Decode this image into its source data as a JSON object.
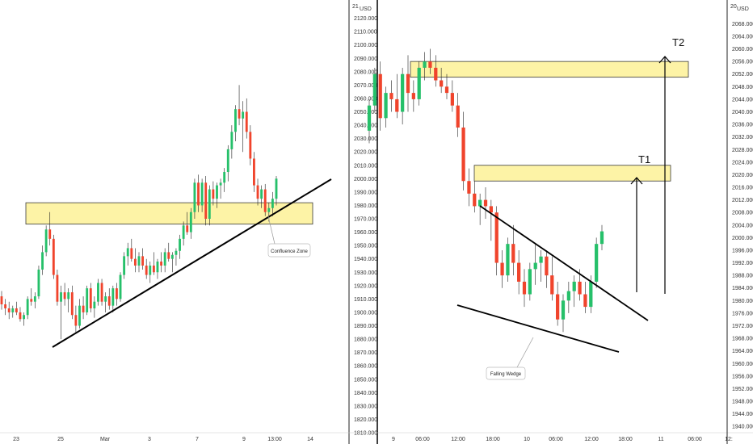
{
  "chart_data": [
    {
      "type": "candlestick",
      "panel": "left",
      "price_unit": "USD",
      "x_tick_labels": [
        "23",
        "25",
        "Mar",
        "3",
        "7",
        "9",
        "13:00",
        "14"
      ],
      "y_ticks": [
        "2120.000",
        "2110.000",
        "2100.000",
        "2090.000",
        "2080.000",
        "2070.000",
        "2060.000",
        "2050.000",
        "2040.000",
        "2030.000",
        "2020.000",
        "2010.000",
        "2000.000",
        "1990.000",
        "1980.000",
        "1970.000",
        "1960.000",
        "1950.000",
        "1940.000",
        "1930.000",
        "1920.000",
        "1910.000",
        "1900.000",
        "1890.000",
        "1880.000",
        "1870.000",
        "1860.000",
        "1850.000",
        "1840.000",
        "1830.000",
        "1820.000",
        "1810.000"
      ],
      "ylim": [
        1810,
        2130
      ],
      "price_top_label": "21",
      "candles_ohlc": [
        [
          1912,
          1916,
          1902,
          1906
        ],
        [
          1906,
          1910,
          1898,
          1903
        ],
        [
          1903,
          1908,
          1895,
          1900
        ],
        [
          1900,
          1905,
          1896,
          1903
        ],
        [
          1903,
          1908,
          1898,
          1900
        ],
        [
          1900,
          1904,
          1893,
          1895
        ],
        [
          1895,
          1900,
          1890,
          1898
        ],
        [
          1898,
          1912,
          1895,
          1910
        ],
        [
          1910,
          1918,
          1905,
          1908
        ],
        [
          1908,
          1915,
          1903,
          1912
        ],
        [
          1912,
          1935,
          1910,
          1932
        ],
        [
          1932,
          1950,
          1928,
          1945
        ],
        [
          1945,
          1965,
          1942,
          1962
        ],
        [
          1962,
          1975,
          1950,
          1955
        ],
        [
          1955,
          1958,
          1925,
          1928
        ],
        [
          1928,
          1932,
          1905,
          1908
        ],
        [
          1908,
          1920,
          1880,
          1915
        ],
        [
          1915,
          1922,
          1905,
          1910
        ],
        [
          1910,
          1918,
          1900,
          1915
        ],
        [
          1915,
          1920,
          1895,
          1898
        ],
        [
          1898,
          1905,
          1885,
          1890
        ],
        [
          1890,
          1910,
          1888,
          1905
        ],
        [
          1905,
          1912,
          1895,
          1900
        ],
        [
          1900,
          1920,
          1898,
          1918
        ],
        [
          1918,
          1922,
          1900,
          1903
        ],
        [
          1903,
          1912,
          1896,
          1908
        ],
        [
          1908,
          1925,
          1905,
          1922
        ],
        [
          1922,
          1925,
          1905,
          1908
        ],
        [
          1908,
          1915,
          1900,
          1912
        ],
        [
          1912,
          1918,
          1902,
          1905
        ],
        [
          1905,
          1920,
          1900,
          1918
        ],
        [
          1918,
          1922,
          1905,
          1910
        ],
        [
          1910,
          1930,
          1908,
          1928
        ],
        [
          1928,
          1945,
          1925,
          1942
        ],
        [
          1942,
          1952,
          1935,
          1948
        ],
        [
          1948,
          1955,
          1938,
          1940
        ],
        [
          1940,
          1948,
          1930,
          1935
        ],
        [
          1935,
          1945,
          1930,
          1942
        ],
        [
          1942,
          1948,
          1932,
          1935
        ],
        [
          1935,
          1940,
          1925,
          1928
        ],
        [
          1928,
          1938,
          1922,
          1935
        ],
        [
          1935,
          1945,
          1928,
          1930
        ],
        [
          1930,
          1940,
          1925,
          1938
        ],
        [
          1938,
          1945,
          1930,
          1935
        ],
        [
          1935,
          1948,
          1930,
          1945
        ],
        [
          1945,
          1952,
          1938,
          1940
        ],
        [
          1940,
          1945,
          1930,
          1943
        ],
        [
          1943,
          1948,
          1935,
          1946
        ],
        [
          1946,
          1958,
          1940,
          1955
        ],
        [
          1955,
          1968,
          1950,
          1965
        ],
        [
          1965,
          1975,
          1958,
          1960
        ],
        [
          1960,
          1978,
          1955,
          1975
        ],
        [
          1975,
          2000,
          1970,
          1997
        ],
        [
          1997,
          2003,
          1975,
          1980
        ],
        [
          1980,
          2000,
          1975,
          1997
        ],
        [
          1997,
          2002,
          1965,
          1970
        ],
        [
          1970,
          1995,
          1965,
          1992
        ],
        [
          1992,
          1998,
          1980,
          1985
        ],
        [
          1985,
          1997,
          1978,
          1995
        ],
        [
          1995,
          2000,
          1985,
          1997
        ],
        [
          1997,
          2008,
          1990,
          2005
        ],
        [
          2005,
          2025,
          1998,
          2022
        ],
        [
          2022,
          2040,
          2015,
          2035
        ],
        [
          2035,
          2055,
          2028,
          2052
        ],
        [
          2052,
          2070,
          2040,
          2045
        ],
        [
          2045,
          2058,
          2020,
          2050
        ],
        [
          2050,
          2060,
          2030,
          2035
        ],
        [
          2035,
          2040,
          2010,
          2015
        ],
        [
          2015,
          2020,
          1990,
          1995
        ],
        [
          1995,
          2000,
          1980,
          1985
        ],
        [
          1985,
          1995,
          1978,
          1992
        ],
        [
          1992,
          1996,
          1972,
          1975
        ],
        [
          1975,
          1982,
          1968,
          1978
        ],
        [
          1978,
          1990,
          1972,
          1985
        ],
        [
          1985,
          2002,
          1980,
          2000
        ]
      ],
      "zone": {
        "label": "",
        "low": 1966,
        "high": 1982
      },
      "annotation": "Confluence Zone"
    },
    {
      "type": "candlestick",
      "panel": "right",
      "price_unit": "USD",
      "x_tick_labels": [
        "9",
        "06:00",
        "12:00",
        "18:00",
        "10",
        "06:00",
        "12:00",
        "18:00",
        "11",
        "06:00",
        "12:"
      ],
      "y_ticks": [
        "2068.000",
        "2064.000",
        "2060.000",
        "2056.000",
        "2052.000",
        "2048.000",
        "2044.000",
        "2040.000",
        "2036.000",
        "2032.000",
        "2028.000",
        "2024.000",
        "2020.000",
        "2016.000",
        "2012.000",
        "2008.000",
        "2004.000",
        "2000.000",
        "1996.000",
        "1992.000",
        "1988.000",
        "1984.000",
        "1980.000",
        "1976.000",
        "1972.000",
        "1968.000",
        "1964.000",
        "1960.000",
        "1956.000",
        "1952.000",
        "1948.000",
        "1944.000",
        "1940.000"
      ],
      "ylim": [
        1938,
        2074
      ],
      "price_top_label": "20",
      "candles_ohlc": [
        [
          2034,
          2044,
          2030,
          2042
        ],
        [
          2042,
          2054,
          2040,
          2052
        ],
        [
          2052,
          2056,
          2034,
          2038
        ],
        [
          2038,
          2048,
          2035,
          2046
        ],
        [
          2046,
          2050,
          2040,
          2044
        ],
        [
          2044,
          2052,
          2038,
          2040
        ],
        [
          2040,
          2054,
          2036,
          2052
        ],
        [
          2052,
          2058,
          2040,
          2046
        ],
        [
          2046,
          2050,
          2040,
          2044
        ],
        [
          2044,
          2056,
          2042,
          2054
        ],
        [
          2054,
          2059,
          2050,
          2056
        ],
        [
          2056,
          2060,
          2052,
          2054
        ],
        [
          2054,
          2058,
          2048,
          2050
        ],
        [
          2050,
          2054,
          2046,
          2048
        ],
        [
          2048,
          2052,
          2044,
          2046
        ],
        [
          2046,
          2050,
          2040,
          2042
        ],
        [
          2042,
          2046,
          2032,
          2035
        ],
        [
          2035,
          2040,
          2015,
          2018
        ],
        [
          2018,
          2022,
          2010,
          2014
        ],
        [
          2014,
          2018,
          2008,
          2010
        ],
        [
          2010,
          2014,
          2004,
          2012
        ],
        [
          2012,
          2016,
          2006,
          2010
        ],
        [
          2010,
          2012,
          1999,
          2008
        ],
        [
          2008,
          2010,
          1988,
          1992
        ],
        [
          1992,
          1996,
          1984,
          1988
        ],
        [
          1988,
          2000,
          1986,
          1998
        ],
        [
          1998,
          2004,
          1988,
          1992
        ],
        [
          1992,
          1996,
          1982,
          1986
        ],
        [
          1986,
          1990,
          1978,
          1982
        ],
        [
          1982,
          1992,
          1980,
          1990
        ],
        [
          1990,
          1998,
          1985,
          1992
        ],
        [
          1992,
          1996,
          1986,
          1994
        ],
        [
          1994,
          1996,
          1984,
          1988
        ],
        [
          1988,
          1994,
          1980,
          1982
        ],
        [
          1982,
          1986,
          1972,
          1974
        ],
        [
          1974,
          1982,
          1970,
          1980
        ],
        [
          1980,
          1986,
          1976,
          1983
        ],
        [
          1983,
          1988,
          1978,
          1986
        ],
        [
          1986,
          1990,
          1980,
          1982
        ],
        [
          1982,
          1986,
          1976,
          1978
        ],
        [
          1978,
          1988,
          1976,
          1986
        ],
        [
          1986,
          2000,
          1984,
          1998
        ],
        [
          1998,
          2004,
          1996,
          2002
        ]
      ],
      "zones": [
        {
          "label": "T1",
          "low": 2018,
          "high": 2023
        },
        {
          "label": "T2",
          "low": 2051,
          "high": 2056
        }
      ],
      "annotation": "Falling Wedge",
      "targets": [
        "T1",
        "T2"
      ]
    }
  ]
}
